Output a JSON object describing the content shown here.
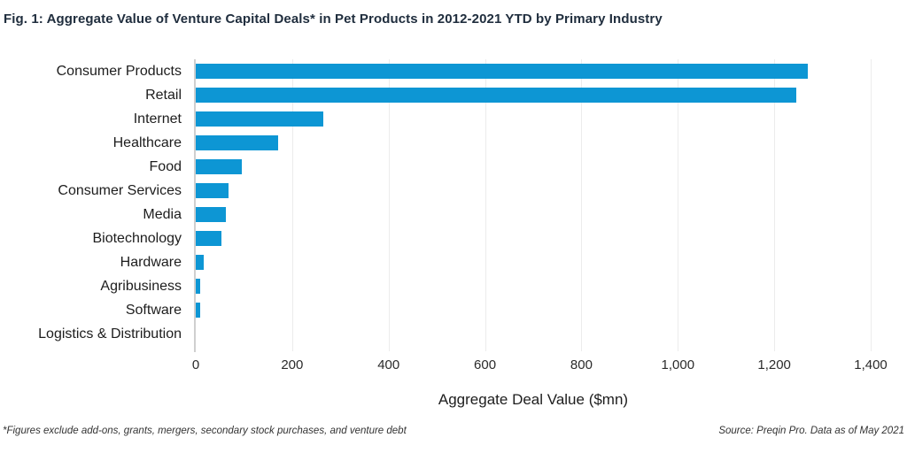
{
  "title": "Fig. 1: Aggregate Value of Venture Capital Deals* in Pet Products in 2012-2021 YTD by Primary Industry",
  "footnote_left": "*Figures exclude add-ons, grants, mergers, secondary stock purchases, and venture debt",
  "footnote_right": "Source: Preqin Pro. Data as of May 2021",
  "colors": {
    "bar": "#0d96d4",
    "title_text": "#202e3e",
    "gridline": "#ececec",
    "zero_axis_line": "#cfcfcf",
    "label_text": "#1d1d1d"
  },
  "chart_data": {
    "type": "bar",
    "orientation": "horizontal",
    "title": "Fig. 1: Aggregate Value of Venture Capital Deals* in Pet Products in 2012-2021 YTD by Primary Industry",
    "categories": [
      "Consumer Products",
      "Retail",
      "Internet",
      "Healthcare",
      "Food",
      "Consumer Services",
      "Media",
      "Biotechnology",
      "Hardware",
      "Agribusiness",
      "Software",
      "Logistics & Distribution"
    ],
    "values": [
      1270,
      1245,
      265,
      170,
      95,
      68,
      63,
      53,
      16,
      10,
      9,
      0
    ],
    "xlabel": "Aggregate Deal Value ($mn)",
    "ylabel": "",
    "xlim": [
      0,
      1400
    ],
    "xticks": [
      0,
      200,
      400,
      600,
      800,
      1000,
      1200,
      1400
    ],
    "xtick_labels": [
      "0",
      "200",
      "400",
      "600",
      "800",
      "1,000",
      "1,200",
      "1,400"
    ],
    "grid": true,
    "legend": false
  }
}
